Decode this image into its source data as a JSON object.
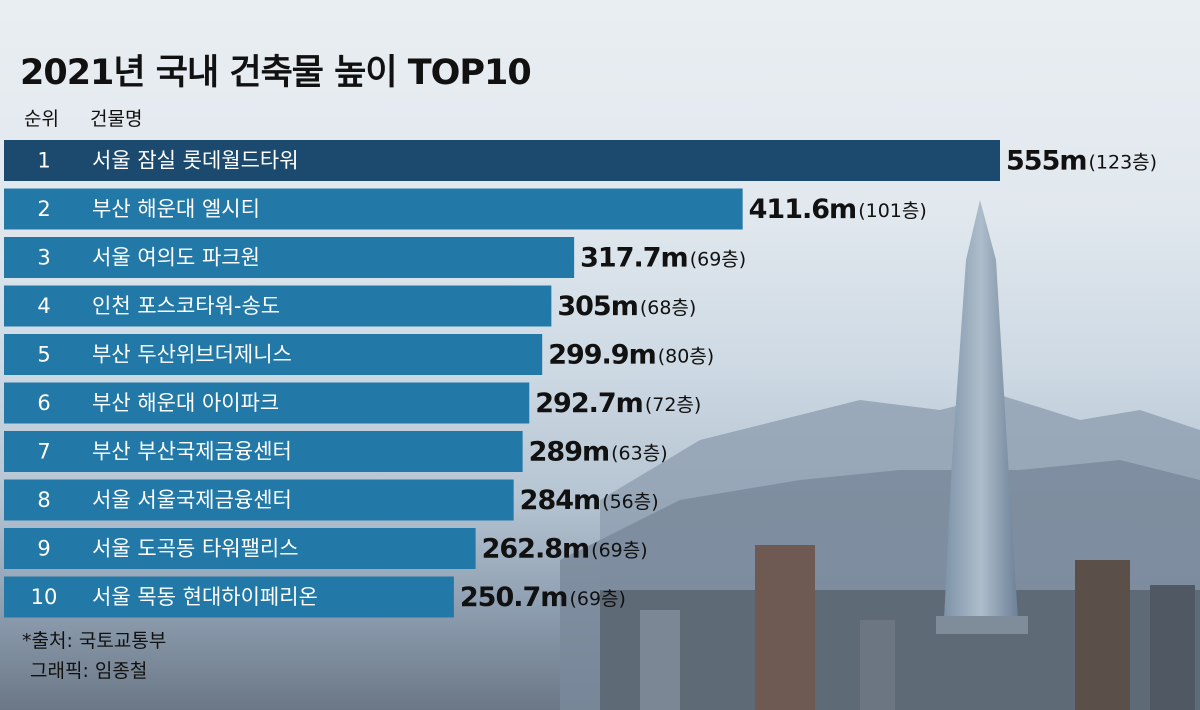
{
  "title": "2021년 국내 건축물 높이 TOP10",
  "headers": {
    "rank": "순위",
    "name": "건물명"
  },
  "colors": {
    "top_bar": "#1c4a6e",
    "bar": "#2279a8",
    "value_text": "#111111"
  },
  "chart_data": {
    "type": "bar",
    "orientation": "horizontal",
    "title": "2021년 국내 건축물 높이 TOP10",
    "unit": "m",
    "bars": [
      {
        "rank": "1",
        "name": "서울 잠실 롯데월드타워",
        "height": 555,
        "label": "555m",
        "floors": "(123층)"
      },
      {
        "rank": "2",
        "name": "부산 해운대 엘시티",
        "height": 411.6,
        "label": "411.6m",
        "floors": "(101층)"
      },
      {
        "rank": "3",
        "name": "서울 여의도 파크원",
        "height": 317.7,
        "label": "317.7m",
        "floors": "(69층)"
      },
      {
        "rank": "4",
        "name": "인천 포스코타워-송도",
        "height": 305,
        "label": "305m",
        "floors": "(68층)"
      },
      {
        "rank": "5",
        "name": "부산 두산위브더제니스",
        "height": 299.9,
        "label": "299.9m",
        "floors": "(80층)"
      },
      {
        "rank": "6",
        "name": "부산 해운대 아이파크",
        "height": 292.7,
        "label": "292.7m",
        "floors": "(72층)"
      },
      {
        "rank": "7",
        "name": "부산 부산국제금융센터",
        "height": 289,
        "label": "289m",
        "floors": "(63층)"
      },
      {
        "rank": "8",
        "name": "서울 서울국제금융센터",
        "height": 284,
        "label": "284m",
        "floors": "(56층)"
      },
      {
        "rank": "9",
        "name": "서울 도곡동 타워팰리스",
        "height": 262.8,
        "label": "262.8m",
        "floors": "(69층)"
      },
      {
        "rank": "10",
        "name": "서울 목동 현대하이페리온",
        "height": 250.7,
        "label": "250.7m",
        "floors": "(69층)"
      }
    ]
  },
  "source": {
    "line1": "*출처: 국토교통부",
    "line2": "그래픽: 임종철"
  }
}
